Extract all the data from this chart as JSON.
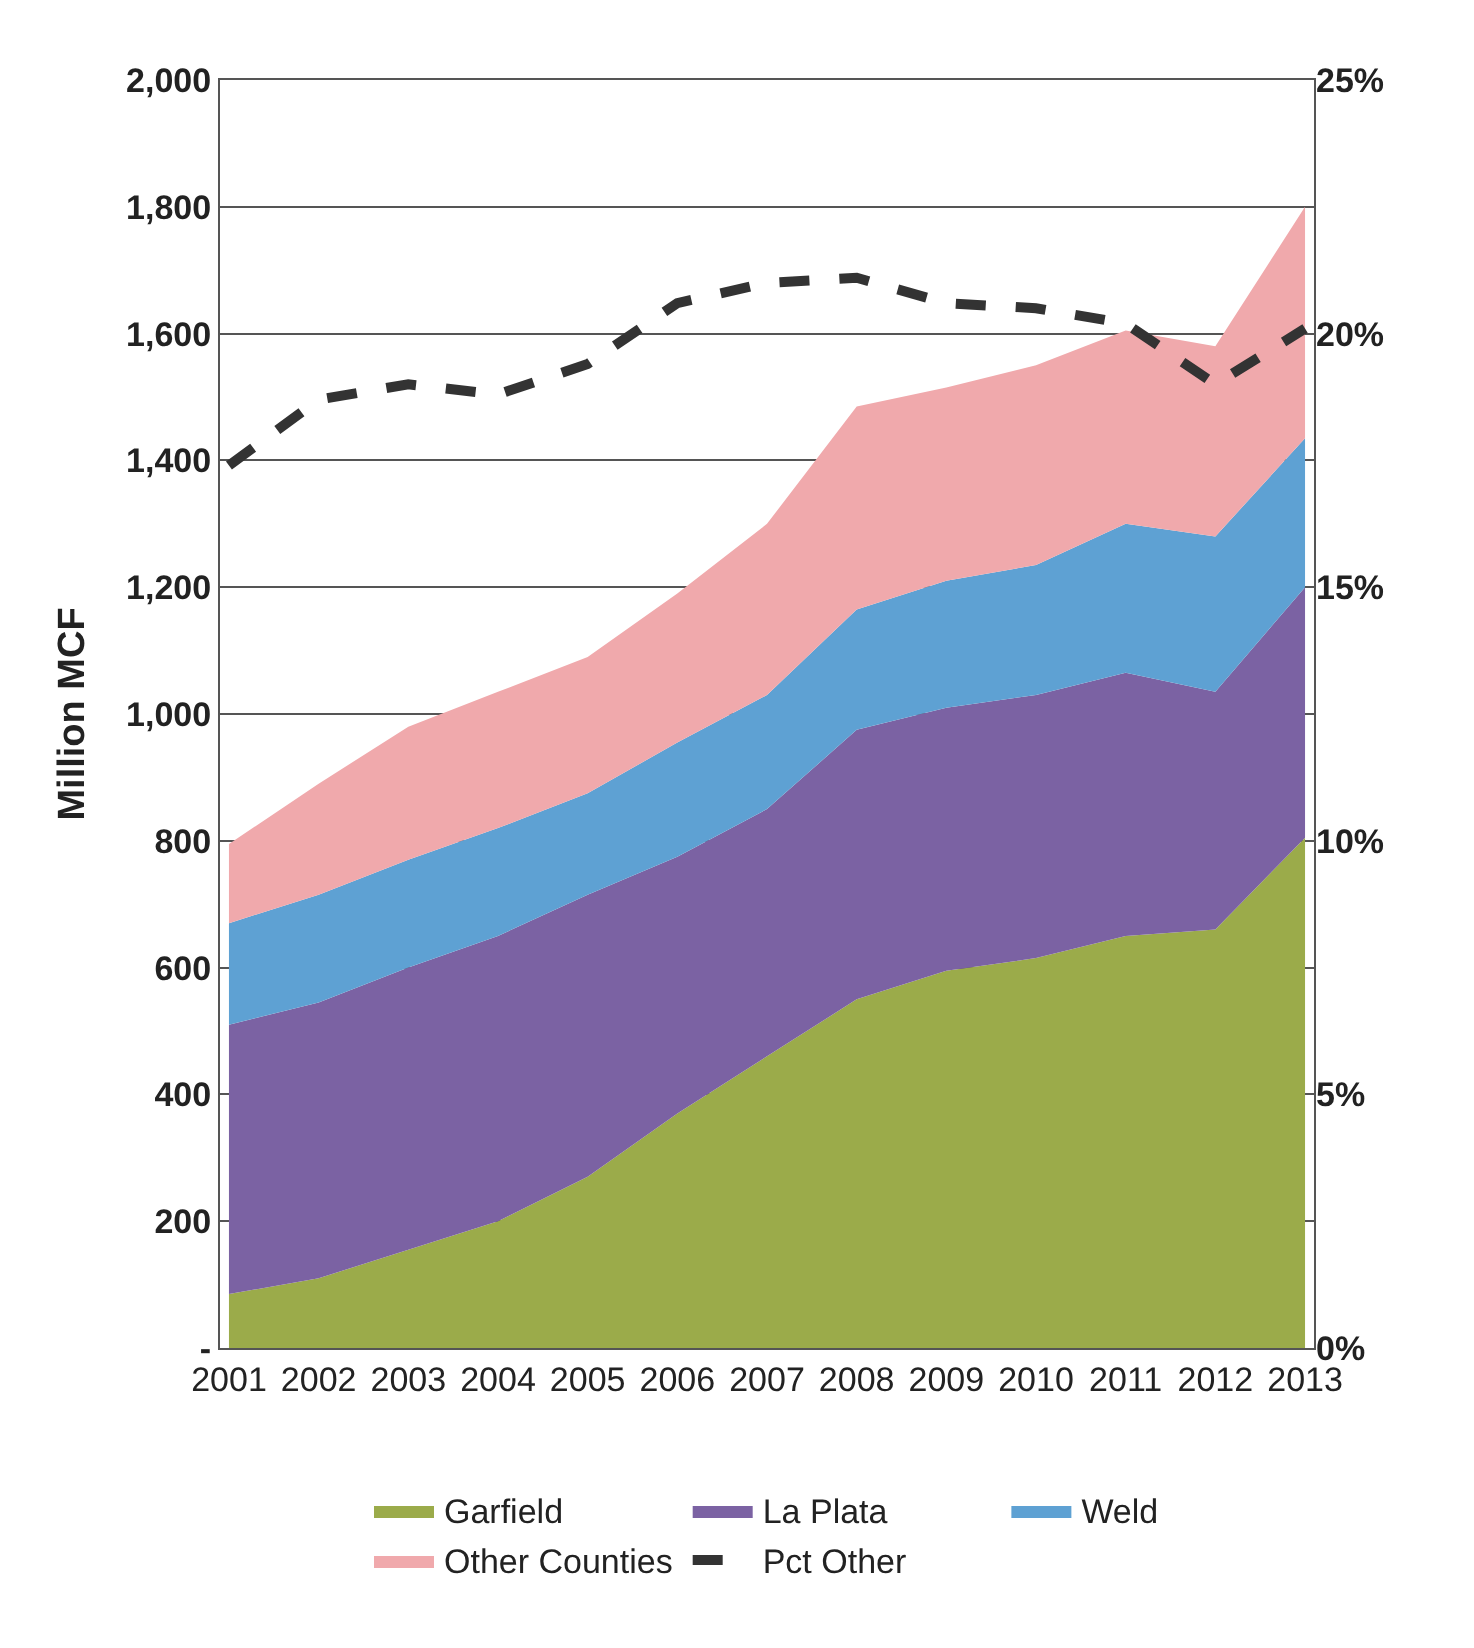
{
  "chart_data": {
    "type": "area",
    "stacked": true,
    "ylabel": "Million MCF",
    "categories": [
      "2001",
      "2002",
      "2003",
      "2004",
      "2005",
      "2006",
      "2007",
      "2008",
      "2009",
      "2010",
      "2011",
      "2012",
      "2013"
    ],
    "series": [
      {
        "name": "Garfield",
        "color": "#9bab4a",
        "values": [
          85,
          110,
          155,
          200,
          270,
          370,
          460,
          550,
          595,
          615,
          650,
          660,
          805
        ]
      },
      {
        "name": "La Plata",
        "color": "#7b62a3",
        "values": [
          425,
          435,
          445,
          450,
          445,
          405,
          390,
          425,
          415,
          415,
          415,
          375,
          395
        ]
      },
      {
        "name": "Weld",
        "color": "#5ea1d3",
        "values": [
          160,
          170,
          170,
          170,
          160,
          180,
          180,
          190,
          200,
          205,
          235,
          245,
          235
        ]
      },
      {
        "name": "Other Counties",
        "color": "#f0a9ac",
        "values": [
          125,
          175,
          210,
          215,
          215,
          235,
          270,
          320,
          305,
          315,
          305,
          300,
          365
        ]
      },
      {
        "name": "Pct Other",
        "type": "line",
        "axis": "y2",
        "color": "#333333",
        "line_style": "dashed",
        "marker": "none",
        "values": [
          17.4,
          18.7,
          19.0,
          18.8,
          19.4,
          20.6,
          21.0,
          21.1,
          20.6,
          20.5,
          20.2,
          19.0,
          20.1
        ]
      }
    ],
    "ylim": [
      0,
      2000
    ],
    "yticks": [
      {
        "value": 0,
        "label": "-"
      },
      {
        "value": 200,
        "label": "200"
      },
      {
        "value": 400,
        "label": "400"
      },
      {
        "value": 600,
        "label": "600"
      },
      {
        "value": 800,
        "label": "800"
      },
      {
        "value": 1000,
        "label": "1,000"
      },
      {
        "value": 1200,
        "label": "1,200"
      },
      {
        "value": 1400,
        "label": "1,400"
      },
      {
        "value": 1600,
        "label": "1,600"
      },
      {
        "value": 1800,
        "label": "1,800"
      },
      {
        "value": 2000,
        "label": "2,000"
      }
    ],
    "y2lim": [
      0,
      25
    ],
    "y2ticks": [
      {
        "value": 0,
        "label": "0%"
      },
      {
        "value": 5,
        "label": "5%"
      },
      {
        "value": 10,
        "label": "10%"
      },
      {
        "value": 15,
        "label": "15%"
      },
      {
        "value": 20,
        "label": "20%"
      },
      {
        "value": 25,
        "label": "25%"
      }
    ],
    "grid": "y",
    "legend": "bottom"
  }
}
